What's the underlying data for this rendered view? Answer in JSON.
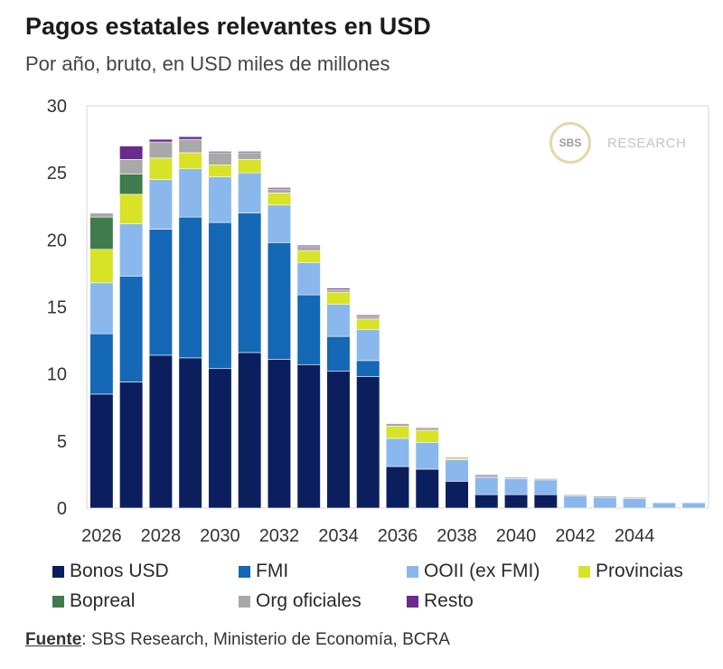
{
  "title": "Pagos estatales relevantes en USD",
  "subtitle": "Por año, bruto, en USD miles de millones",
  "watermark": {
    "logo": "SBS",
    "text": "RESEARCH"
  },
  "source": {
    "label": "Fuente",
    "text": ": SBS Research, Ministerio de Economía, BCRA"
  },
  "chart_data": {
    "type": "bar",
    "stacked": true,
    "categories": [
      "2026",
      "2027",
      "2028",
      "2029",
      "2030",
      "2031",
      "2032",
      "2033",
      "2034",
      "2035",
      "2036",
      "2037",
      "2038",
      "2039",
      "2040",
      "2041",
      "2042",
      "2043",
      "2044",
      "2045",
      "2046"
    ],
    "x_tick_labels": [
      "2026",
      "2028",
      "2030",
      "2032",
      "2034",
      "2036",
      "2038",
      "2040",
      "2042",
      "2044"
    ],
    "ylim": [
      0,
      30
    ],
    "yticks": [
      0,
      5,
      10,
      15,
      20,
      25,
      30
    ],
    "grid": false,
    "legend_position": "bottom",
    "series": [
      {
        "name": "Bonos USD",
        "color": "#0b1f5e",
        "values": [
          8.5,
          9.4,
          11.4,
          11.2,
          10.4,
          11.6,
          11.1,
          10.7,
          10.2,
          9.8,
          3.1,
          2.9,
          2.0,
          1.0,
          1.0,
          1.0,
          0,
          0,
          0,
          0,
          0
        ]
      },
      {
        "name": "FMI",
        "color": "#1468b5",
        "values": [
          4.5,
          7.9,
          9.4,
          10.5,
          10.9,
          10.4,
          8.7,
          5.2,
          2.6,
          1.2,
          0,
          0,
          0,
          0,
          0,
          0,
          0,
          0,
          0,
          0,
          0
        ]
      },
      {
        "name": "OOII (ex FMI)",
        "color": "#8ab8ec",
        "values": [
          3.8,
          3.9,
          3.7,
          3.6,
          3.4,
          3.0,
          2.8,
          2.4,
          2.4,
          2.3,
          2.1,
          2.0,
          1.6,
          1.3,
          1.2,
          1.1,
          0.9,
          0.8,
          0.7,
          0.4,
          0.4
        ]
      },
      {
        "name": "Provincias",
        "color": "#d8e227",
        "values": [
          2.5,
          2.2,
          1.6,
          1.2,
          0.9,
          1.0,
          0.9,
          0.9,
          0.9,
          0.8,
          0.9,
          0.9,
          0.1,
          0,
          0,
          0,
          0,
          0,
          0,
          0,
          0
        ]
      },
      {
        "name": "Bopreal",
        "color": "#3f7b4c",
        "values": [
          2.4,
          1.5,
          0,
          0,
          0,
          0,
          0,
          0,
          0,
          0,
          0,
          0,
          0,
          0,
          0,
          0,
          0,
          0,
          0,
          0,
          0
        ]
      },
      {
        "name": "Org oficiales",
        "color": "#a8a8a8",
        "values": [
          0.3,
          1.1,
          1.2,
          1.0,
          0.9,
          0.5,
          0.3,
          0.3,
          0.2,
          0.2,
          0.2,
          0.2,
          0.1,
          0.2,
          0.1,
          0.1,
          0.1,
          0.1,
          0.1,
          0,
          0
        ]
      },
      {
        "name": "Resto",
        "color": "#6a2b8c",
        "values": [
          0,
          1.0,
          0.2,
          0.2,
          0.1,
          0.1,
          0.1,
          0.1,
          0.1,
          0.1,
          0,
          0,
          0,
          0,
          0,
          0,
          0,
          0,
          0,
          0,
          0
        ]
      }
    ]
  }
}
